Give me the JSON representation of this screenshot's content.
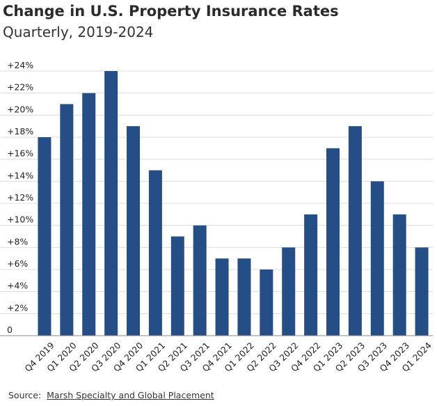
{
  "header": {
    "title": "Change in U.S. Property Insurance Rates",
    "subtitle": "Quarterly, 2019-2024"
  },
  "footer": {
    "source_label": "Source:",
    "source_name": "Marsh Specialty and Global Placement"
  },
  "colors": {
    "bar": "#264e86",
    "grid": "#dcdcdc",
    "axis": "#888888"
  },
  "chart_data": {
    "type": "bar",
    "title": "Change in U.S. Property Insurance Rates",
    "subtitle": "Quarterly, 2019-2024",
    "categories": [
      "Q4 2019",
      "Q1 2020",
      "Q2 2020",
      "Q3 2020",
      "Q4 2020",
      "Q1 2021",
      "Q2 2021",
      "Q3 2021",
      "Q4 2021",
      "Q1 2022",
      "Q2 2022",
      "Q3 2022",
      "Q4 2022",
      "Q1 2023",
      "Q2 2023",
      "Q3 2023",
      "Q4 2023",
      "Q1 2024"
    ],
    "values": [
      18,
      21,
      22,
      24,
      19,
      15,
      9,
      10,
      7,
      7,
      6,
      8,
      11,
      17,
      19,
      14,
      11,
      8
    ],
    "ylim": [
      0,
      24
    ],
    "yticks": [
      0,
      2,
      4,
      6,
      8,
      10,
      12,
      14,
      16,
      18,
      20,
      22,
      24
    ],
    "ytick_labels": [
      "0",
      "+2%",
      "+4%",
      "+6%",
      "+8%",
      "+10%",
      "+12%",
      "+14%",
      "+16%",
      "+18%",
      "+20%",
      "+22%",
      "+24%"
    ],
    "grid": true,
    "legend": "none"
  }
}
